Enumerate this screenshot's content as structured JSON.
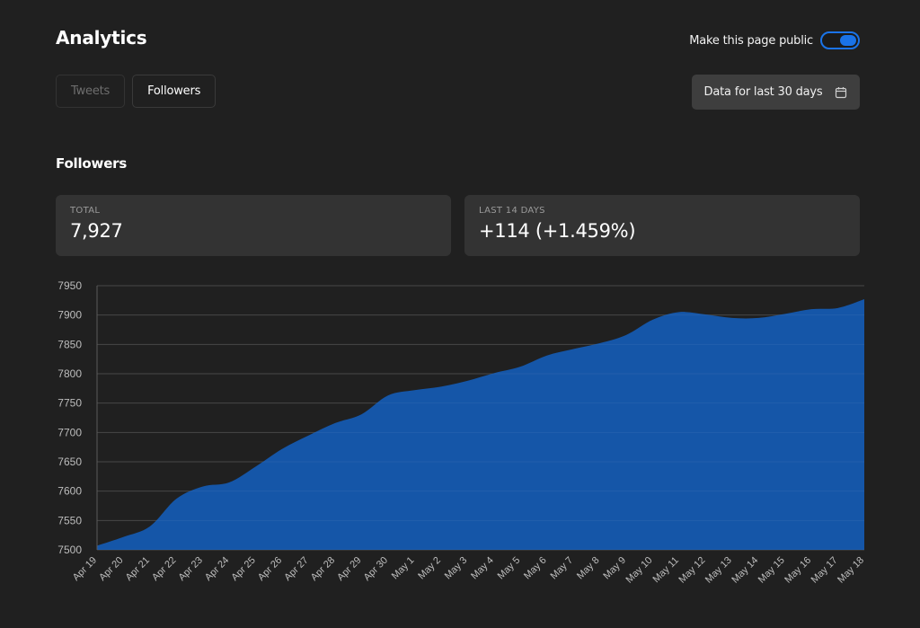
{
  "header": {
    "title": "Analytics",
    "public_label": "Make this page public",
    "public_enabled": true
  },
  "tabs": [
    {
      "label": "Tweets",
      "active": false
    },
    {
      "label": "Followers",
      "active": true
    }
  ],
  "date_range": {
    "label": "Data for last 30 days",
    "icon": "calendar-icon"
  },
  "section_title": "Followers",
  "stats": {
    "total": {
      "label": "TOTAL",
      "value": "7,927"
    },
    "last14": {
      "label": "LAST 14 DAYS",
      "value": "+114 (+1.459%)"
    }
  },
  "colors": {
    "accent": "#1a73e8",
    "area_fill": "#1556a8",
    "background": "#202020",
    "card": "#333333"
  },
  "chart_data": {
    "type": "area",
    "x": [
      "Apr 19",
      "Apr 20",
      "Apr 21",
      "Apr 22",
      "Apr 23",
      "Apr 24",
      "Apr 25",
      "Apr 26",
      "Apr 27",
      "Apr 28",
      "Apr 29",
      "Apr 30",
      "May 1",
      "May 2",
      "May 3",
      "May 4",
      "May 5",
      "May 6",
      "May 7",
      "May 8",
      "May 9",
      "May 10",
      "May 11",
      "May 12",
      "May 13",
      "May 14",
      "May 15",
      "May 16",
      "May 17",
      "May 18"
    ],
    "series": [
      {
        "values": [
          7507,
          7522,
          7540,
          7587,
          7608,
          7615,
          7642,
          7672,
          7695,
          7716,
          7731,
          7763,
          7772,
          7778,
          7788,
          7801,
          7812,
          7831,
          7842,
          7852,
          7866,
          7892,
          7905,
          7901,
          7895,
          7895,
          7902,
          7910,
          7912,
          7927
        ]
      }
    ],
    "ylim": [
      7500,
      7950
    ],
    "yticks": [
      7950,
      7900,
      7850,
      7800,
      7750,
      7700,
      7650,
      7600,
      7550,
      7500
    ],
    "grid": true,
    "xlabel": "",
    "ylabel": ""
  }
}
